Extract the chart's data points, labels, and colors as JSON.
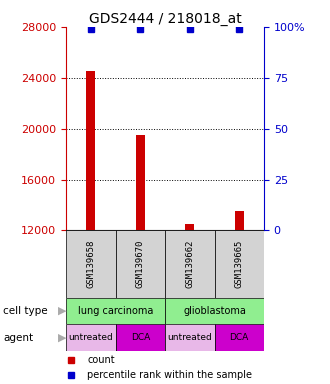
{
  "title": "GDS2444 / 218018_at",
  "samples": [
    "GSM139658",
    "GSM139670",
    "GSM139662",
    "GSM139665"
  ],
  "counts": [
    24500,
    19500,
    12500,
    13500
  ],
  "percentiles": [
    99,
    99,
    99,
    99
  ],
  "ylim_left": [
    12000,
    28000
  ],
  "ylim_right": [
    0,
    100
  ],
  "yticks_left": [
    12000,
    16000,
    20000,
    24000,
    28000
  ],
  "yticks_right": [
    0,
    25,
    50,
    75,
    100
  ],
  "bar_color": "#cc0000",
  "dot_color": "#0000cc",
  "bar_width": 0.18,
  "cell_type_groups": [
    {
      "label": "lung carcinoma",
      "start": 0,
      "end": 2,
      "color": "#90ee90"
    },
    {
      "label": "glioblastoma",
      "start": 2,
      "end": 4,
      "color": "#90ee90"
    }
  ],
  "agents": [
    "untreated",
    "DCA",
    "untreated",
    "DCA"
  ],
  "agent_color_untreated": "#e8b8e8",
  "agent_color_DCA": "#cc00cc",
  "label_color_left": "#cc0000",
  "label_color_right": "#0000cc",
  "background_box_color": "#d3d3d3",
  "font_size_title": 10,
  "font_size_ticks": 8,
  "x_positions": [
    0.5,
    1.5,
    2.5,
    3.5
  ],
  "xlim": [
    0,
    4
  ]
}
